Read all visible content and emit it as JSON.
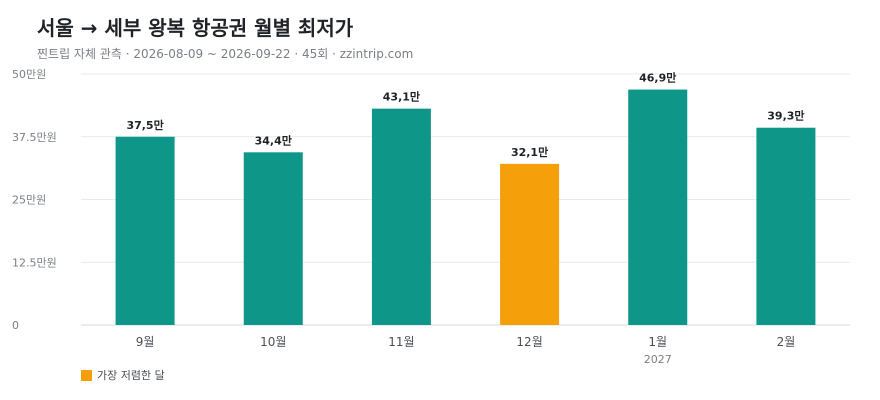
{
  "header": {
    "title": "서울 → 세부 왕복 항공권 월별 최저가",
    "subtitle": "찐트립 자체 관측 · 2026-08-09 ~ 2026-09-22 · 45회 · zzintrip.com"
  },
  "chart_data": {
    "type": "bar",
    "categories": [
      "9월",
      "10월",
      "11월",
      "12월",
      "1월",
      "2월"
    ],
    "category_sublabels": [
      "",
      "",
      "",
      "",
      "2027",
      ""
    ],
    "values": [
      375000,
      344000,
      431000,
      321000,
      469000,
      393000
    ],
    "value_labels": [
      "37,5만",
      "34,4만",
      "43,1만",
      "32,1만",
      "46,9만",
      "39,3만"
    ],
    "y_ticks": [
      {
        "value": 0,
        "label": "0"
      },
      {
        "value": 125000,
        "label": "12.5만원"
      },
      {
        "value": 250000,
        "label": "25만원"
      },
      {
        "value": 375000,
        "label": "37.5만원"
      },
      {
        "value": 500000,
        "label": "50만원"
      }
    ],
    "ylim": [
      0,
      500000
    ],
    "grid": true,
    "highlight_index": 3,
    "colors": {
      "bar": "#0e9688",
      "highlight": "#f59f0a",
      "grid": "#e7e9ec",
      "baseline": "#d5d8dc"
    }
  },
  "legend": {
    "highlight_label": "가장 저렴한 달",
    "position": "bottom-left"
  }
}
